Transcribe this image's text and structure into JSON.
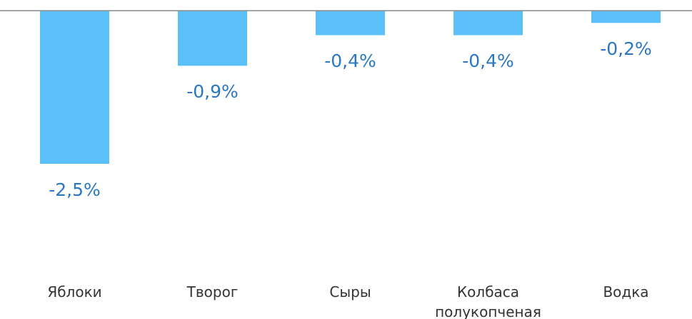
{
  "chart_data": {
    "type": "bar",
    "categories": [
      "Яблоки",
      "Творог",
      "Сыры",
      "Колбаса полукопченая",
      "Водка"
    ],
    "values": [
      -2.5,
      -0.9,
      -0.4,
      -0.4,
      -0.2
    ],
    "value_labels": [
      "-2,5%",
      "-0,9%",
      "-0,4%",
      "-0,4%",
      "-0,2%"
    ],
    "color": "#5bc0f8"
  }
}
